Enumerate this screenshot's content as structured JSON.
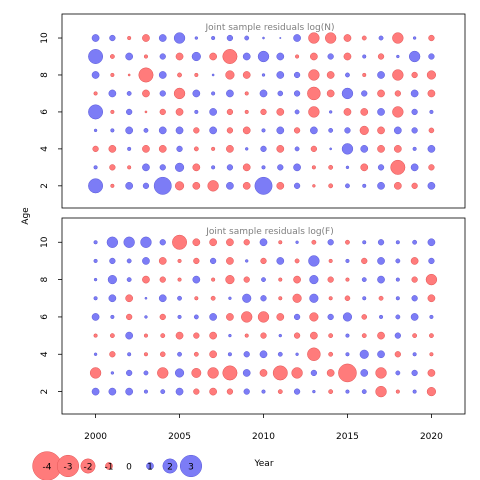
{
  "chart_data": [
    {
      "type": "scatter",
      "style": "bubble",
      "title": "Joint sample residuals log(N)",
      "ylabel": "Age",
      "xlim": [
        1998,
        2022
      ],
      "ylim": [
        0.8,
        11.3
      ],
      "xticks": [
        2000,
        2005,
        2010,
        2015,
        2020
      ],
      "yticks": [
        2,
        4,
        6,
        8,
        10
      ],
      "x": [
        2000,
        2001,
        2002,
        2003,
        2004,
        2005,
        2006,
        2007,
        2008,
        2009,
        2010,
        2011,
        2012,
        2013,
        2014,
        2015,
        2016,
        2017,
        2018,
        2019,
        2020
      ],
      "ages": [
        2,
        3,
        4,
        5,
        6,
        7,
        8,
        9,
        10
      ],
      "residuals": [
        [
          2.0,
          -0.5,
          1.0,
          0.8,
          2.4,
          -1.2,
          -1.0,
          -1.5,
          1.0,
          -1.0,
          2.4,
          -1.0,
          0.8,
          -0.4,
          -0.6,
          0.6,
          0.5,
          1.0,
          -1.0,
          -0.8,
          1.0
        ],
        [
          0.5,
          -0.8,
          -0.5,
          1.0,
          0.8,
          1.2,
          -1.0,
          0.5,
          0.8,
          -1.0,
          0.5,
          0.8,
          1.0,
          -0.5,
          -0.6,
          0.4,
          -1.0,
          0.8,
          -2.0,
          1.0,
          -0.8
        ],
        [
          -0.8,
          -1.0,
          0.5,
          -1.0,
          -1.0,
          0.8,
          -0.6,
          -0.5,
          -1.0,
          0.4,
          0.8,
          -1.0,
          0.6,
          -0.8,
          0.3,
          1.5,
          1.0,
          -1.0,
          -1.0,
          0.5,
          1.0
        ],
        [
          0.4,
          0.5,
          1.0,
          0.6,
          1.0,
          1.0,
          -0.8,
          1.0,
          -0.8,
          -1.0,
          0.5,
          1.0,
          -0.8,
          1.0,
          0.6,
          0.8,
          -1.2,
          -1.0,
          1.0,
          0.8,
          -0.7
        ],
        [
          2.0,
          -0.5,
          0.8,
          -0.3,
          -0.8,
          -1.0,
          0.5,
          1.0,
          -0.8,
          -0.5,
          -0.8,
          -1.0,
          0.6,
          -1.5,
          0.4,
          -1.0,
          -1.0,
          1.0,
          -1.5,
          0.8,
          0.5
        ],
        [
          -0.5,
          1.0,
          0.6,
          -1.0,
          0.8,
          -1.5,
          1.0,
          0.5,
          1.0,
          -0.5,
          1.0,
          0.7,
          0.8,
          -1.8,
          -1.0,
          1.5,
          0.8,
          -1.0,
          -0.8,
          1.0,
          -1.0
        ],
        [
          1.0,
          -0.5,
          -0.3,
          -2.0,
          1.0,
          -0.6,
          -0.5,
          0.3,
          -1.2,
          -1.0,
          0.4,
          1.0,
          0.8,
          -1.5,
          -1.0,
          0.6,
          -0.5,
          1.0,
          -1.5,
          -0.8,
          -1.2
        ],
        [
          2.0,
          -0.6,
          1.0,
          -0.5,
          0.8,
          -1.0,
          1.2,
          -1.0,
          -2.0,
          1.0,
          1.5,
          1.0,
          -0.5,
          -1.0,
          0.8,
          -1.0,
          0.5,
          -0.8,
          0.4,
          1.5,
          0.8
        ],
        [
          1.0,
          0.8,
          -0.5,
          -1.0,
          1.0,
          1.5,
          0.4,
          0.5,
          0.8,
          0.6,
          0.3,
          0.2,
          1.0,
          -1.5,
          -1.5,
          -1.0,
          -0.6,
          0.6,
          -1.5,
          0.4,
          -0.8
        ]
      ]
    },
    {
      "type": "scatter",
      "style": "bubble",
      "title": "Joint sample residuals log(F)",
      "ylabel": "Age",
      "xlabel": "Year",
      "xlim": [
        1998,
        2022
      ],
      "ylim": [
        0.8,
        11.3
      ],
      "xticks": [
        2000,
        2005,
        2010,
        2015,
        2020
      ],
      "yticks": [
        2,
        4,
        6,
        8,
        10
      ],
      "x": [
        2000,
        2001,
        2002,
        2003,
        2004,
        2005,
        2006,
        2007,
        2008,
        2009,
        2010,
        2011,
        2012,
        2013,
        2014,
        2015,
        2016,
        2017,
        2018,
        2019,
        2020
      ],
      "ages": [
        2,
        3,
        4,
        5,
        6,
        7,
        8,
        9,
        10
      ],
      "residuals": [
        [
          1.0,
          1.0,
          1.0,
          0.5,
          0.6,
          1.0,
          -0.8,
          -1.0,
          -0.8,
          0.8,
          0.5,
          -0.6,
          0.8,
          0.4,
          -0.6,
          0.5,
          0.6,
          -1.5,
          -0.5,
          0.5,
          -1.2
        ],
        [
          -1.5,
          0.4,
          0.8,
          0.6,
          -1.5,
          1.2,
          -1.3,
          -1.5,
          -2.0,
          1.0,
          -1.0,
          -2.0,
          -1.5,
          0.8,
          -1.0,
          -2.5,
          1.0,
          -1.5,
          0.6,
          0.8,
          -1.0
        ],
        [
          0.4,
          -0.8,
          0.5,
          -0.5,
          -0.7,
          0.6,
          -0.6,
          -1.0,
          0.5,
          0.8,
          1.0,
          0.6,
          0.4,
          -1.8,
          -0.6,
          0.5,
          1.2,
          1.0,
          -0.8,
          0.5,
          -0.5
        ],
        [
          -0.5,
          -0.6,
          1.0,
          -0.5,
          -0.6,
          -1.0,
          -0.8,
          -1.0,
          0.4,
          -0.5,
          -0.8,
          0.4,
          -0.8,
          -1.0,
          -0.6,
          0.5,
          -0.6,
          -1.0,
          0.8,
          -0.6,
          -0.6
        ],
        [
          1.0,
          0.5,
          -0.8,
          0.4,
          -0.8,
          0.5,
          0.6,
          1.0,
          -1.0,
          -1.5,
          -1.5,
          -1.0,
          0.8,
          -1.2,
          0.8,
          1.2,
          -0.7,
          0.5,
          0.6,
          1.0,
          0.5
        ],
        [
          0.5,
          1.0,
          -1.0,
          0.3,
          1.0,
          0.6,
          -0.5,
          -0.6,
          0.4,
          1.2,
          0.8,
          -0.5,
          -1.2,
          1.2,
          -0.5,
          -0.7,
          0.5,
          -0.6,
          0.5,
          0.8,
          -1.0
        ],
        [
          0.4,
          1.2,
          0.6,
          -1.0,
          -0.8,
          -0.5,
          1.0,
          -0.5,
          -1.2,
          -0.8,
          0.6,
          -0.5,
          -1.0,
          1.2,
          -0.8,
          -0.5,
          0.6,
          1.0,
          0.5,
          -0.8,
          -1.5
        ],
        [
          0.5,
          0.8,
          0.6,
          1.0,
          -1.0,
          -0.5,
          -0.8,
          0.8,
          -1.0,
          0.4,
          -0.8,
          1.0,
          -0.6,
          1.5,
          -0.5,
          0.5,
          -0.8,
          1.0,
          0.6,
          -1.0,
          0.8
        ],
        [
          0.5,
          1.5,
          1.5,
          1.5,
          0.8,
          -2.0,
          -1.0,
          -1.0,
          -1.0,
          -0.8,
          1.0,
          -0.5,
          0.4,
          -0.6,
          0.8,
          -0.6,
          0.5,
          0.8,
          0.5,
          0.6,
          1.0
        ]
      ]
    }
  ],
  "legend": {
    "items": [
      {
        "label": "-4",
        "value": -4
      },
      {
        "label": "-3",
        "value": -3
      },
      {
        "label": "-2",
        "value": -2
      },
      {
        "label": "-1",
        "value": -1
      },
      {
        "label": "0",
        "value": 0
      },
      {
        "label": "1",
        "value": 1
      },
      {
        "label": "2",
        "value": 2
      },
      {
        "label": "3",
        "value": 3
      }
    ]
  },
  "colors": {
    "positive": "#7c7cf6",
    "positive_edge": "#5a5ad8",
    "negative": "#ff7b7b",
    "negative_edge": "#e25454",
    "title_text": "#7f7f7f",
    "axis": "#000000"
  }
}
